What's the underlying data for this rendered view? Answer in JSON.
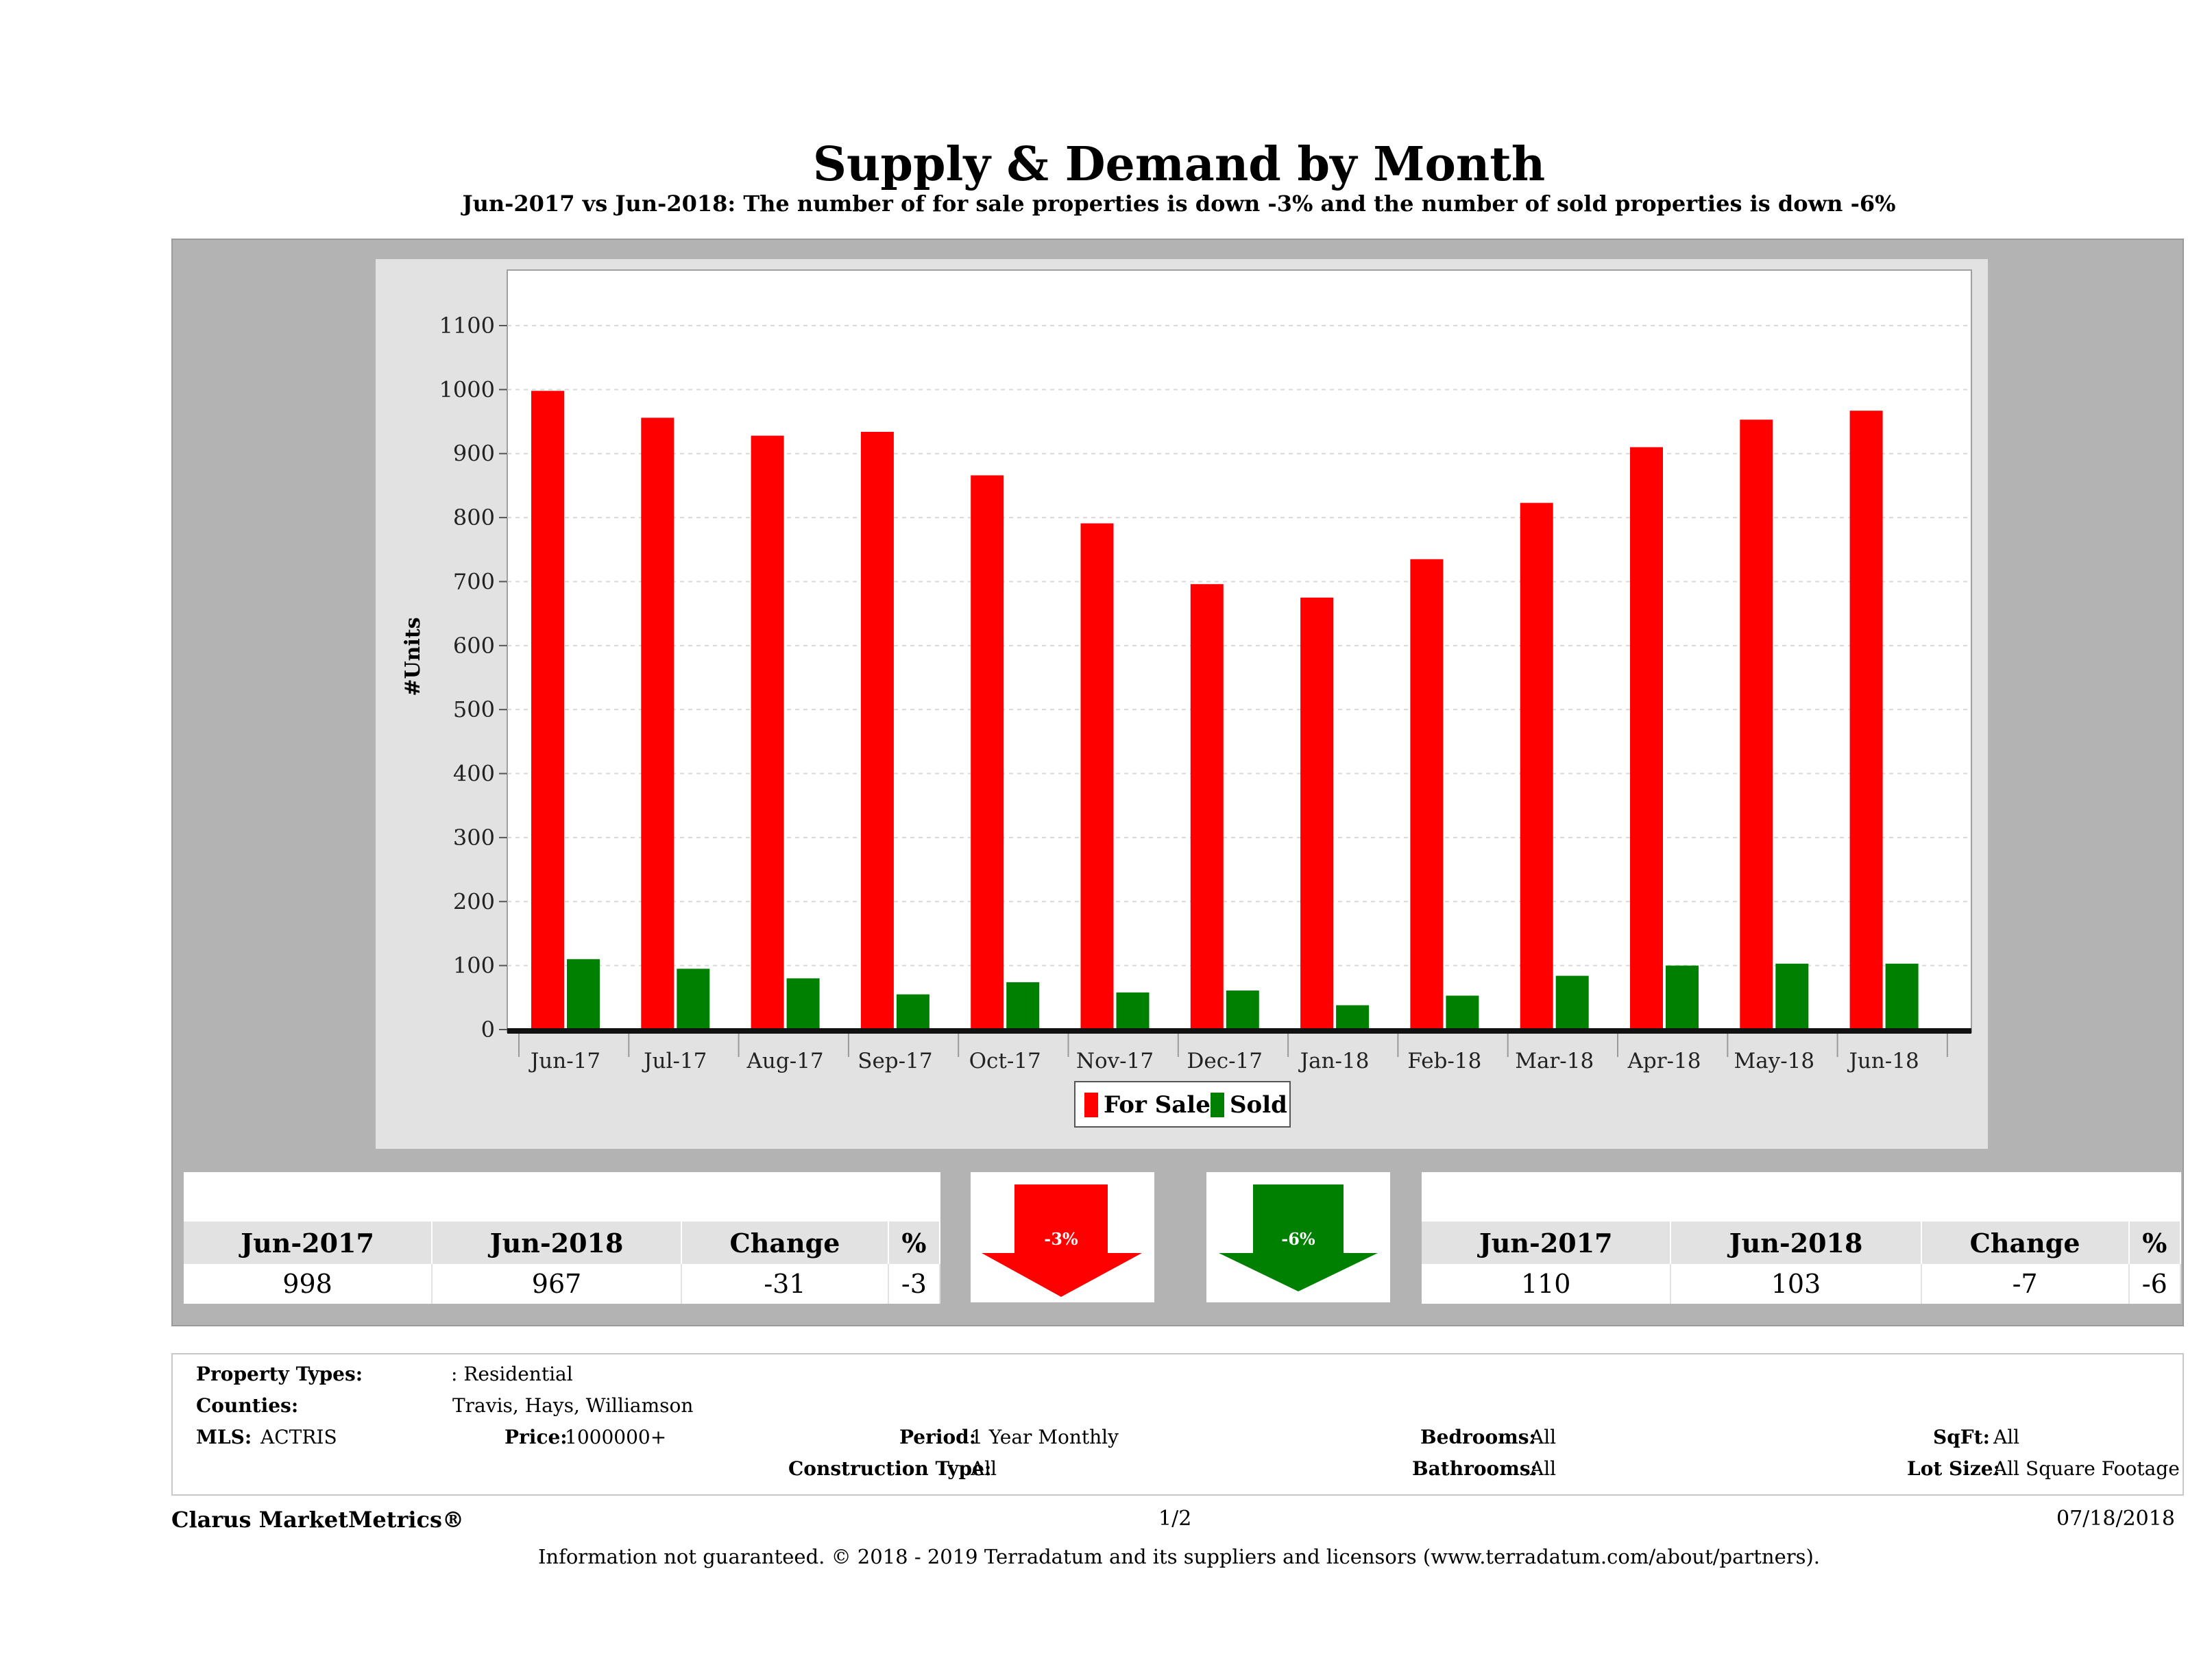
{
  "header": {
    "title": "Supply & Demand by Month",
    "subtitle": "Jun-2017 vs Jun-2018: The number of for sale properties is down -3% and the number of sold properties is down -6%"
  },
  "chart_data": {
    "type": "bar",
    "categories": [
      "Jun-17",
      "Jul-17",
      "Aug-17",
      "Sep-17",
      "Oct-17",
      "Nov-17",
      "Dec-17",
      "Jan-18",
      "Feb-18",
      "Mar-18",
      "Apr-18",
      "May-18",
      "Jun-18"
    ],
    "series": [
      {
        "name": "For Sale",
        "color": "#ff0000",
        "values": [
          998,
          956,
          928,
          934,
          866,
          791,
          696,
          675,
          735,
          823,
          910,
          953,
          967
        ]
      },
      {
        "name": "Sold",
        "color": "#008000",
        "values": [
          110,
          95,
          80,
          55,
          74,
          58,
          61,
          38,
          53,
          84,
          100,
          103,
          103
        ]
      }
    ],
    "ylabel": "#Units",
    "xlabel": "",
    "ylim": [
      0,
      1100
    ],
    "yticks": [
      0,
      100,
      200,
      300,
      400,
      500,
      600,
      700,
      800,
      900,
      1000,
      1100
    ],
    "grid": true,
    "legend_position": "bottom-center"
  },
  "for_sale_stats": {
    "headers": [
      "Jun-2017",
      "Jun-2018",
      "Change",
      "%"
    ],
    "values": [
      "998",
      "967",
      "-31",
      "-3"
    ],
    "arrow_label": "-3%",
    "arrow_color": "#ff0000",
    "arrow_icon": "down-arrow-icon"
  },
  "sold_stats": {
    "headers": [
      "Jun-2017",
      "Jun-2018",
      "Change",
      "%"
    ],
    "values": [
      "110",
      "103",
      "-7",
      "-6"
    ],
    "arrow_label": "-6%",
    "arrow_color": "#008000",
    "arrow_icon": "down-arrow-icon"
  },
  "criteria": {
    "property_types_label": "Property Types:",
    "property_types_value": ": Residential",
    "counties_label": "Counties:",
    "counties_value": "Travis, Hays, Williamson",
    "mls_label": "MLS:",
    "mls_value": "ACTRIS",
    "price_label": "Price:",
    "price_value": "1000000+",
    "period_label": "Period:",
    "period_value": "1 Year Monthly",
    "construction_label": "Construction Type:",
    "construction_value": "All",
    "bedrooms_label": "Bedrooms:",
    "bedrooms_value": "All",
    "bathrooms_label": "Bathrooms:",
    "bathrooms_value": "All",
    "sqft_label": "SqFt:",
    "sqft_value": "All",
    "lot_label": "Lot Size:",
    "lot_value": "All Square Footage"
  },
  "footer": {
    "brand": "Clarus MarketMetrics®",
    "page": "1/2",
    "date": "07/18/2018",
    "note": "Information not guaranteed. © 2018 - 2019 Terradatum and its suppliers and licensors (www.terradatum.com/about/partners)."
  }
}
